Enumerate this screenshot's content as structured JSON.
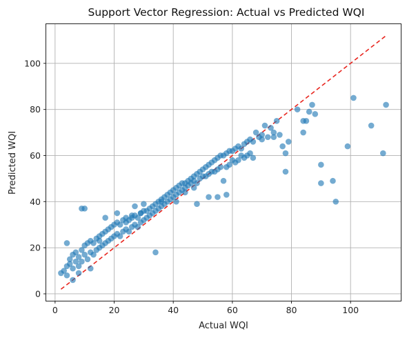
{
  "chart_data": {
    "type": "scatter",
    "title": "Support Vector Regression: Actual vs Predicted WQI",
    "xlabel": "Actual WQI",
    "ylabel": "Predicted WQI",
    "xlim": [
      -3,
      117
    ],
    "ylim": [
      -3,
      117
    ],
    "xticks": [
      0,
      20,
      40,
      60,
      80,
      100
    ],
    "yticks": [
      0,
      20,
      40,
      60,
      80,
      100
    ],
    "grid": true,
    "point_color": "#1f77b4",
    "reference_line": {
      "style": "dashed",
      "color": "#e8251e",
      "x": [
        2,
        112
      ],
      "y": [
        2,
        112
      ]
    },
    "series": [
      {
        "x": [
          2,
          3,
          4,
          4,
          5,
          5,
          6,
          6,
          7,
          7,
          8,
          8,
          9,
          9,
          10,
          10,
          11,
          11,
          12,
          12,
          13,
          13,
          14,
          14,
          15,
          15,
          16,
          16,
          17,
          17,
          18,
          18,
          19,
          19,
          20,
          20,
          21,
          21,
          22,
          22,
          23,
          23,
          24,
          24,
          25,
          25,
          26,
          26,
          27,
          27,
          28,
          28,
          29,
          29,
          30,
          30,
          31,
          31,
          32,
          32,
          33,
          33,
          34,
          34,
          35,
          35,
          36,
          36,
          37,
          37,
          38,
          38,
          39,
          39,
          40,
          40,
          41,
          41,
          42,
          42,
          43,
          43,
          44,
          44,
          45,
          45,
          46,
          46,
          47,
          47,
          48,
          48,
          49,
          49,
          50,
          50,
          51,
          51,
          52,
          52,
          53,
          53,
          54,
          54,
          55,
          55,
          56,
          56,
          57,
          57,
          58,
          58,
          59,
          59,
          60,
          60,
          61,
          61,
          62,
          62,
          63,
          63,
          64,
          64,
          65,
          65,
          66,
          66,
          67,
          67,
          68,
          69,
          70,
          70,
          71,
          72,
          73,
          74,
          74,
          75,
          76,
          77,
          78,
          78,
          79,
          82,
          84,
          84,
          85,
          86,
          87,
          88,
          90,
          90,
          94,
          95,
          99,
          101,
          107,
          111,
          112,
          9,
          10,
          4,
          17,
          26,
          29,
          34,
          48,
          55,
          6,
          8,
          12,
          15,
          21,
          24,
          27,
          30,
          36,
          41,
          44,
          47,
          52,
          58
        ],
        "y": [
          9,
          10,
          12,
          8,
          15,
          13,
          17,
          11,
          18,
          14,
          16,
          12,
          19,
          14,
          21,
          17,
          22,
          15,
          23,
          18,
          22,
          17,
          24,
          19,
          25,
          20,
          26,
          21,
          27,
          22,
          28,
          23,
          29,
          24,
          30,
          25,
          31,
          26,
          30,
          25,
          32,
          27,
          33,
          28,
          32,
          27,
          33,
          29,
          34,
          30,
          33,
          29,
          35,
          31,
          36,
          32,
          36,
          33,
          37,
          34,
          38,
          35,
          39,
          36,
          40,
          37,
          41,
          38,
          42,
          39,
          43,
          40,
          44,
          41,
          45,
          42,
          46,
          43,
          47,
          44,
          48,
          45,
          48,
          46,
          49,
          47,
          50,
          48,
          51,
          49,
          52,
          48,
          53,
          50,
          54,
          51,
          55,
          51,
          56,
          52,
          57,
          53,
          58,
          53,
          59,
          54,
          60,
          55,
          60,
          49,
          61,
          55,
          62,
          56,
          62,
          58,
          63,
          57,
          64,
          58,
          63,
          60,
          65,
          59,
          66,
          60,
          67,
          61,
          66,
          59,
          70,
          68,
          69,
          67,
          73,
          68,
          72,
          68,
          70,
          75,
          69,
          64,
          61,
          53,
          66,
          80,
          70,
          75,
          75,
          79,
          82,
          78,
          56,
          48,
          49,
          40,
          64,
          85,
          73,
          61,
          82,
          37,
          37,
          22,
          33,
          34,
          35,
          18,
          39,
          42,
          6,
          9,
          11,
          23,
          35,
          31,
          38,
          39,
          40,
          40,
          44,
          46,
          42,
          43
        ]
      }
    ]
  }
}
